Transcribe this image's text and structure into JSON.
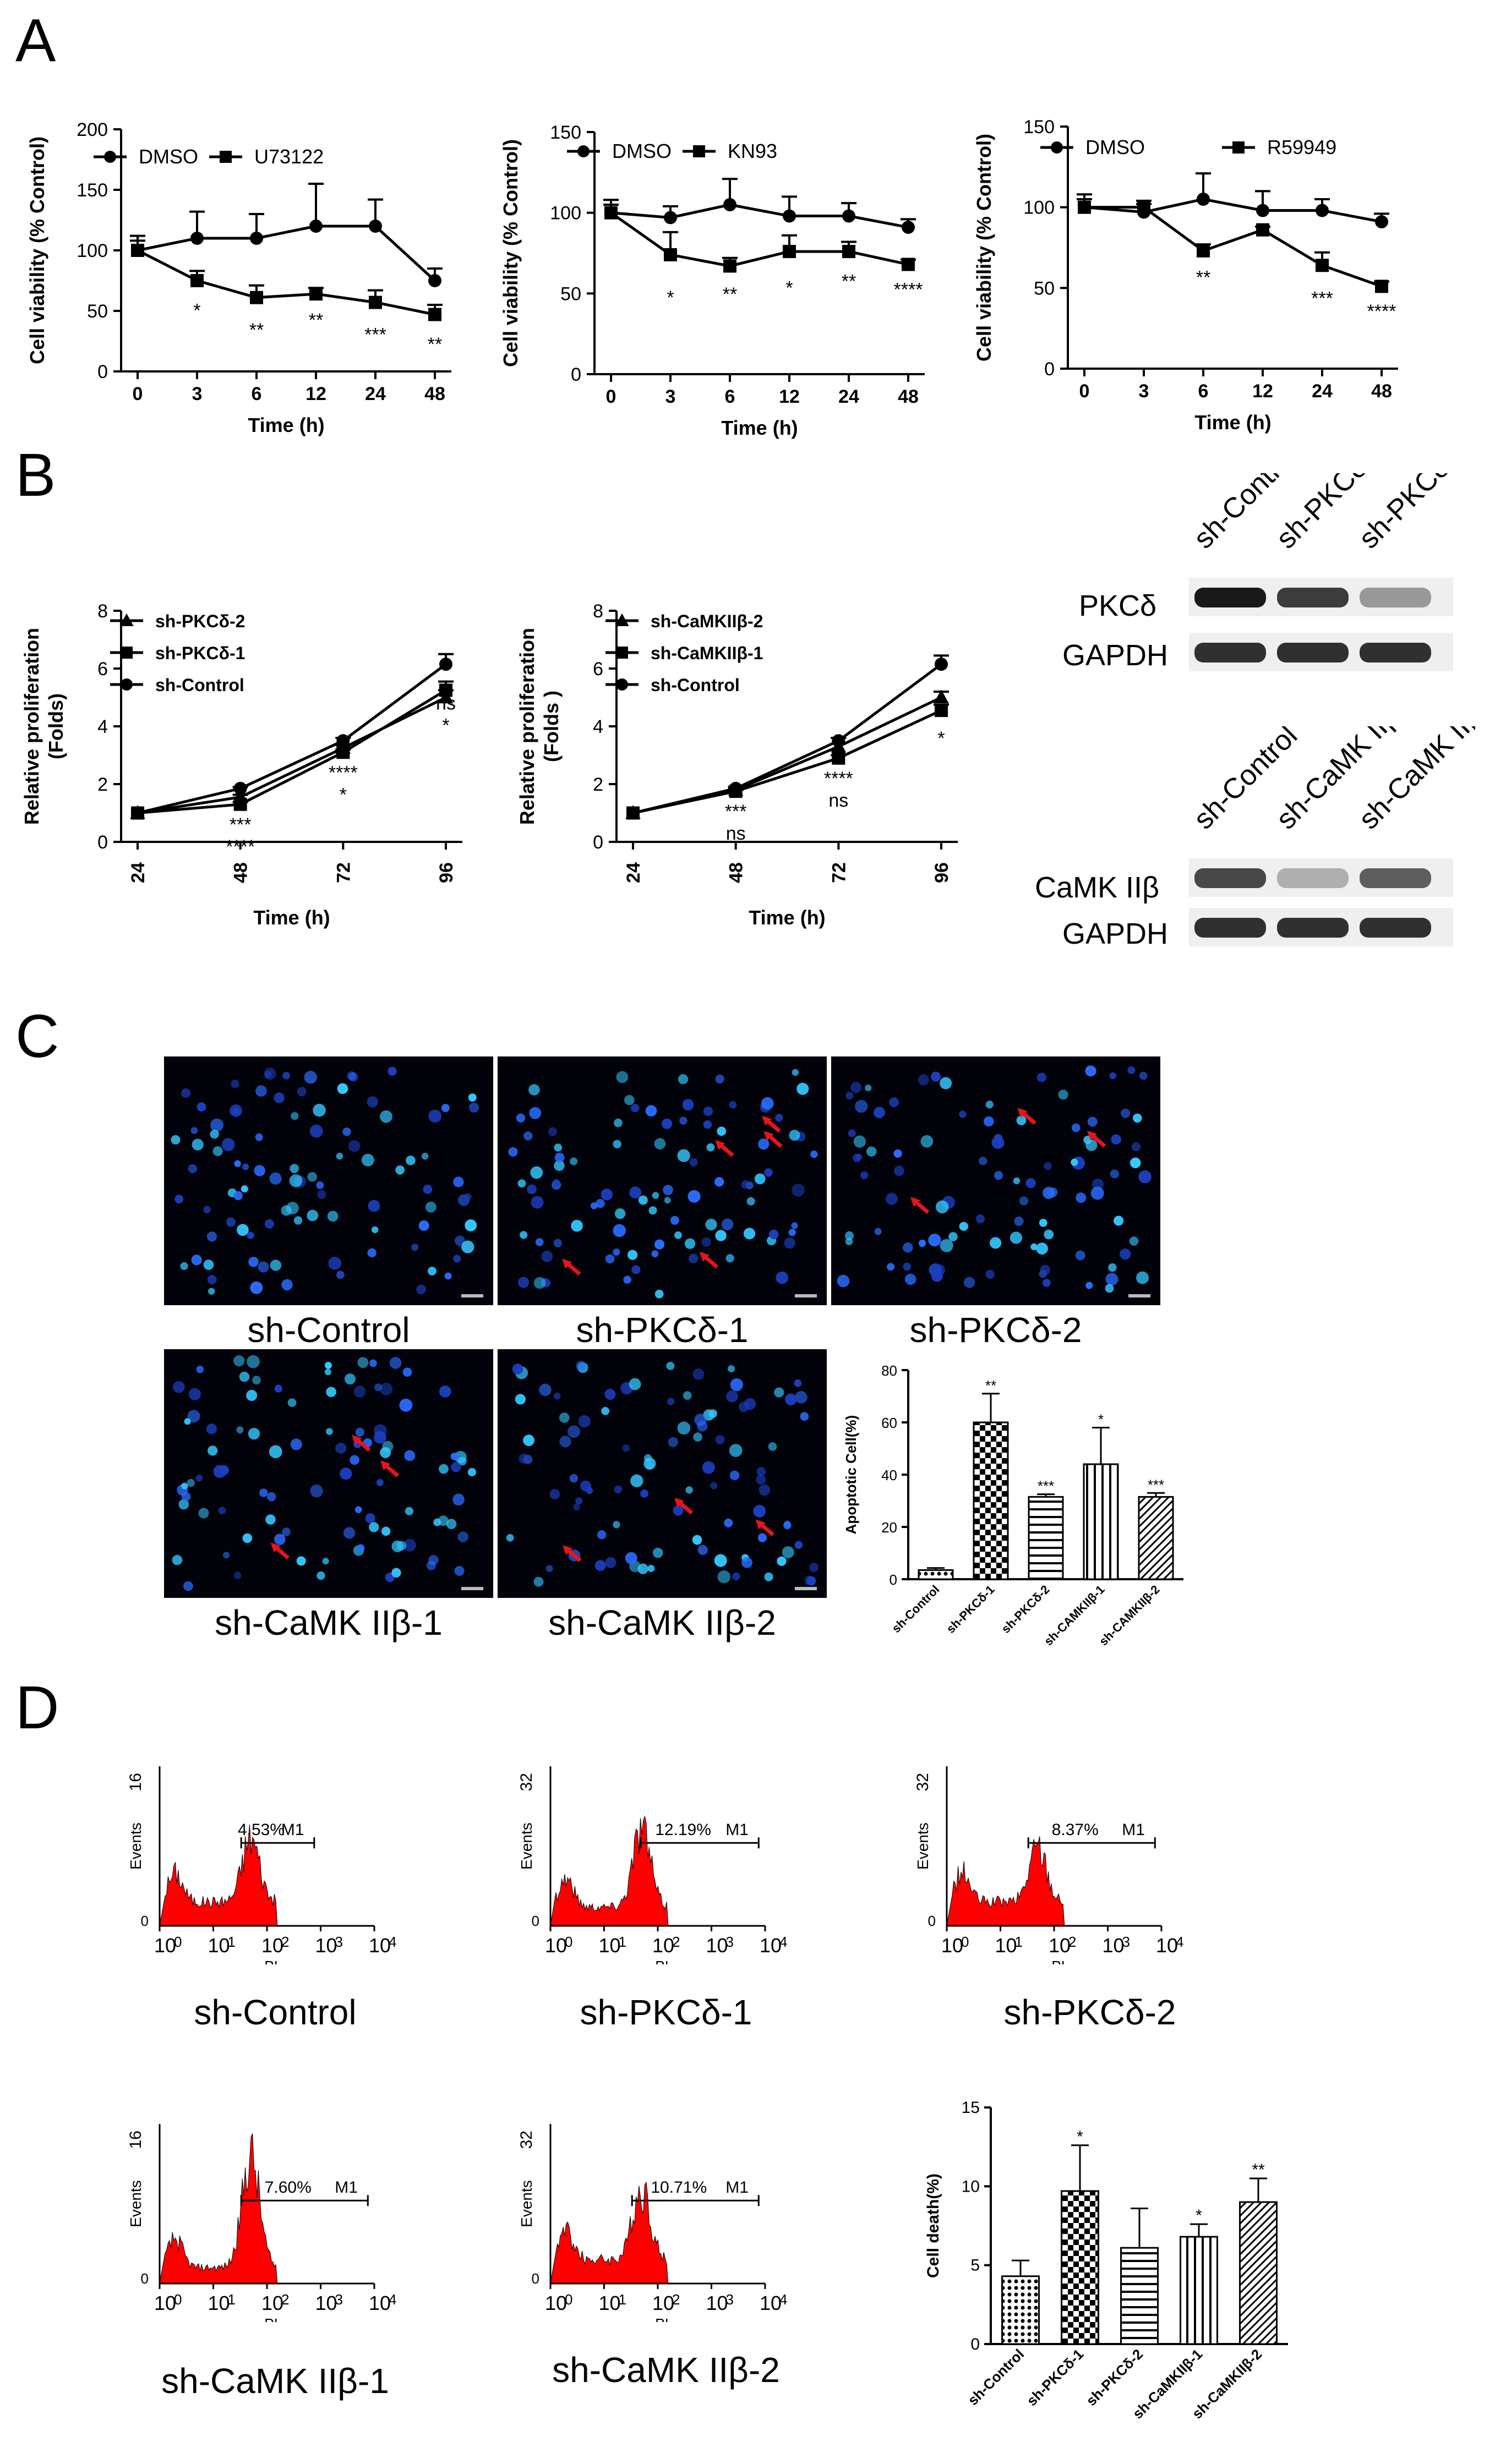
{
  "panels": {
    "A": "A",
    "B": "B",
    "C": "C",
    "D": "D"
  },
  "chart_data": [
    {
      "id": "A1",
      "type": "line",
      "xlabel": "Time (h)",
      "ylabel": "Cell viability (% Control)",
      "categories": [
        "0",
        "3",
        "6",
        "12",
        "24",
        "48"
      ],
      "ylim": [
        0,
        200
      ],
      "yticks": [
        "0",
        "50",
        "100",
        "150",
        "200"
      ],
      "series": [
        {
          "name": "DMSO",
          "marker": "circle",
          "values": [
            100,
            110,
            110,
            120,
            120,
            75
          ],
          "err": [
            12,
            22,
            20,
            35,
            22,
            10
          ]
        },
        {
          "name": "U73122",
          "marker": "square",
          "values": [
            100,
            75,
            61,
            64,
            57,
            47
          ],
          "err": [
            8,
            8,
            10,
            5,
            10,
            8
          ]
        }
      ],
      "annotations": [
        "",
        "*",
        "**",
        "**",
        "***",
        "**"
      ]
    },
    {
      "id": "A2",
      "type": "line",
      "xlabel": "Time (h)",
      "ylabel": "Cell viability (% Control)",
      "categories": [
        "0",
        "3",
        "6",
        "12",
        "24",
        "48"
      ],
      "ylim": [
        0,
        150
      ],
      "yticks": [
        "0",
        "50",
        "100",
        "150"
      ],
      "series": [
        {
          "name": "DMSO",
          "marker": "circle",
          "values": [
            100,
            97,
            105,
            98,
            98,
            91
          ],
          "err": [
            8,
            7,
            16,
            12,
            8,
            5
          ]
        },
        {
          "name": "KN93",
          "marker": "square",
          "values": [
            100,
            74,
            67,
            76,
            76,
            68
          ],
          "err": [
            5,
            14,
            5,
            10,
            6,
            3
          ]
        }
      ],
      "annotations": [
        "",
        "*",
        "**",
        "*",
        "**",
        "****"
      ]
    },
    {
      "id": "A3",
      "type": "line",
      "xlabel": "Time (h)",
      "ylabel": "Cell viability (% Control)",
      "categories": [
        "0",
        "3",
        "6",
        "12",
        "24",
        "48"
      ],
      "ylim": [
        0,
        150
      ],
      "yticks": [
        "0",
        "50",
        "100",
        "150"
      ],
      "series": [
        {
          "name": "DMSO",
          "marker": "circle",
          "values": [
            100,
            97,
            105,
            98,
            98,
            91
          ],
          "err": [
            8,
            5,
            16,
            12,
            7,
            5
          ]
        },
        {
          "name": "R59949",
          "marker": "square",
          "values": [
            100,
            100,
            73,
            86,
            64,
            51
          ],
          "err": [
            5,
            4,
            4,
            2,
            8,
            3
          ]
        }
      ],
      "annotations": [
        "",
        "",
        "**",
        "",
        "***",
        "****"
      ]
    },
    {
      "id": "B1",
      "type": "line",
      "xlabel": "Time (h)",
      "ylabel": [
        "Relative proliferation",
        "(Folds)"
      ],
      "categories": [
        "24",
        "48",
        "72",
        "96"
      ],
      "ylim": [
        0,
        8
      ],
      "yticks": [
        "0",
        "2",
        "4",
        "6",
        "8"
      ],
      "series": [
        {
          "name": "sh-PKCδ-2",
          "marker": "triangle",
          "values": [
            1,
            1.55,
            3.25,
            5.0
          ],
          "err": [
            0,
            0.08,
            0.1,
            0.25
          ]
        },
        {
          "name": "sh-PKCδ-1",
          "marker": "square",
          "values": [
            1,
            1.3,
            3.1,
            5.25
          ],
          "err": [
            0,
            0.08,
            0.1,
            0.3
          ]
        },
        {
          "name": "sh-Control",
          "marker": "circle",
          "values": [
            1,
            1.85,
            3.5,
            6.15
          ],
          "err": [
            0,
            0.05,
            0.1,
            0.35
          ]
        }
      ],
      "annotations": [
        [],
        [
          "***",
          "****"
        ],
        [
          "****",
          "*"
        ],
        [
          "ns",
          "*"
        ]
      ]
    },
    {
      "id": "B2",
      "type": "line",
      "xlabel": "Time (h)",
      "ylabel": [
        "Relative proliferation",
        "(Folds )"
      ],
      "categories": [
        "24",
        "48",
        "72",
        "96"
      ],
      "ylim": [
        0,
        8
      ],
      "yticks": [
        "0",
        "2",
        "4",
        "6",
        "8"
      ],
      "series": [
        {
          "name": "sh-CaMKIIβ-2",
          "marker": "triangle",
          "values": [
            1,
            1.8,
            3.3,
            5.0
          ],
          "err": [
            0,
            0.05,
            0.1,
            0.2
          ]
        },
        {
          "name": "sh-CaMKIIβ-1",
          "marker": "square",
          "values": [
            1,
            1.75,
            2.9,
            4.55
          ],
          "err": [
            0,
            0.05,
            0.1,
            0.2
          ]
        },
        {
          "name": "sh-Control",
          "marker": "circle",
          "values": [
            1,
            1.85,
            3.5,
            6.15
          ],
          "err": [
            0,
            0.05,
            0.1,
            0.3
          ]
        }
      ],
      "annotations": [
        [],
        [
          "***",
          "ns"
        ],
        [
          "****",
          "ns"
        ],
        [
          "**",
          "*"
        ]
      ]
    },
    {
      "id": "C-bar",
      "type": "bar",
      "ylabel": "Apoptotic Cell(%)",
      "categories": [
        "sh-Control",
        "sh-PKCδ-1",
        "sh-PKCδ-2",
        "sh-CAMKIIβ-1",
        "sh-CAMKIIβ-2"
      ],
      "values": [
        3.5,
        60,
        31.5,
        44,
        31.5
      ],
      "err": [
        0.8,
        11,
        1,
        14,
        1.5
      ],
      "annotations": [
        "",
        "**",
        "***",
        "*",
        "***"
      ],
      "ylim": [
        0,
        80
      ],
      "yticks": [
        "0",
        "20",
        "40",
        "60",
        "80"
      ]
    },
    {
      "id": "D-bar",
      "type": "bar",
      "ylabel": "Cell death(%)",
      "categories": [
        "sh-Control",
        "sh-PKCδ-1",
        "sh-PKCδ-2",
        "sh-CaMKIIβ-1",
        "sh-CaMKIIβ-2"
      ],
      "values": [
        4.3,
        9.7,
        6.1,
        6.8,
        9.0
      ],
      "err": [
        1.0,
        2.9,
        2.5,
        0.8,
        1.5
      ],
      "annotations": [
        "",
        "*",
        "",
        "*",
        "**"
      ],
      "ylim": [
        0,
        15
      ],
      "yticks": [
        "0",
        "5",
        "10",
        "15"
      ]
    }
  ],
  "western": {
    "pkc": {
      "lanes": [
        "sh-Control",
        "sh-PKCδ-1",
        "sh-PKCδ-2"
      ],
      "rows": [
        "PKCδ",
        "GAPDH"
      ],
      "band_intensity": [
        1.0,
        0.85,
        0.45
      ]
    },
    "camk": {
      "lanes": [
        "sh-Control",
        "sh-CaMK IIβ-1",
        "sh-CaMK IIβ-2"
      ],
      "rows": [
        "CaMK IIβ",
        "GAPDH"
      ],
      "band_intensity": [
        0.8,
        0.35,
        0.7
      ]
    }
  },
  "micrographs": [
    {
      "label": "sh-Control",
      "arrows": 0
    },
    {
      "label": "sh-PKCδ-1",
      "arrows": 5
    },
    {
      "label": "sh-PKCδ-2",
      "arrows": 3
    },
    {
      "label": "sh-CaMK IIβ-1",
      "arrows": 3
    },
    {
      "label": "sh-CaMK IIβ-2",
      "arrows": 3
    }
  ],
  "flow": [
    {
      "label": "sh-Control",
      "pct": "4.53%",
      "gate": "M1",
      "ymax": "16",
      "ylabel": "Events",
      "xlabel": "PI",
      "xticks": [
        "10",
        "10",
        "10",
        "10",
        "10"
      ],
      "xexp": [
        "0",
        "1",
        "2",
        "3",
        "4"
      ]
    },
    {
      "label": "sh-PKCδ-1",
      "pct": "12.19%",
      "gate": "M1",
      "ymax": "32",
      "ylabel": "Events",
      "xlabel": "PI",
      "xticks": [
        "10",
        "10",
        "10",
        "10",
        "10"
      ],
      "xexp": [
        "0",
        "1",
        "2",
        "3",
        "4"
      ]
    },
    {
      "label": "sh-PKCδ-2",
      "pct": "8.37%",
      "gate": "M1",
      "ymax": "32",
      "ylabel": "Events",
      "xlabel": "PI",
      "xticks": [
        "10",
        "10",
        "10",
        "10",
        "10"
      ],
      "xexp": [
        "0",
        "1",
        "2",
        "3",
        "4"
      ]
    },
    {
      "label": "sh-CaMK IIβ-1",
      "pct": "7.60%",
      "gate": "M1",
      "ymax": "16",
      "ylabel": "Events",
      "xlabel": "PI",
      "xticks": [
        "10",
        "10",
        "10",
        "10",
        "10"
      ],
      "xexp": [
        "0",
        "1",
        "2",
        "3",
        "4"
      ]
    },
    {
      "label": "sh-CaMK IIβ-2",
      "pct": "10.71%",
      "gate": "M1",
      "ymax": "32",
      "ylabel": "Events",
      "xlabel": "PI",
      "xticks": [
        "10",
        "10",
        "10",
        "10",
        "10"
      ],
      "xexp": [
        "0",
        "1",
        "2",
        "3",
        "4"
      ]
    }
  ],
  "colors": {
    "axis": "#000000",
    "histogram": "#ff0000",
    "arrow": "#e8141b",
    "nucleus": "#2a6cff",
    "micro_bg": "#02020a"
  }
}
